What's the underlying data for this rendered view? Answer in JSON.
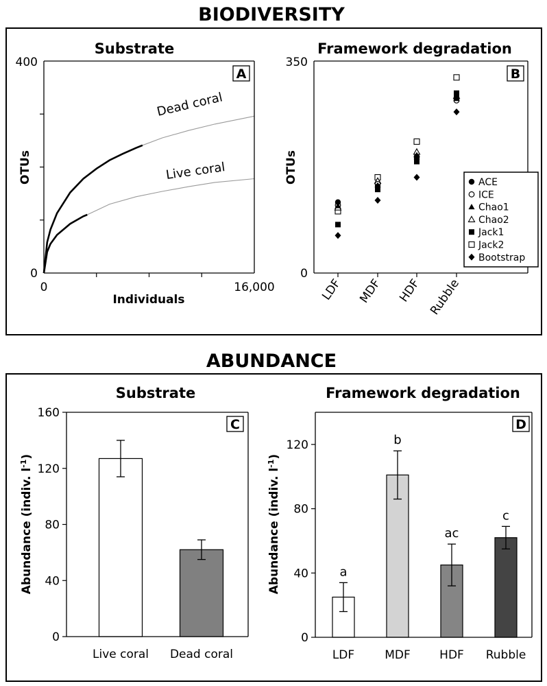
{
  "sections": {
    "biodiversity": "BIODIVERSITY",
    "abundance": "ABUNDANCE"
  },
  "chart_data": [
    {
      "id": "A",
      "type": "line",
      "panel_letter": "A",
      "title": "Substrate",
      "xlabel": "Individuals",
      "ylabel": "OTUs",
      "xlim": [
        0,
        16000
      ],
      "ylim": [
        0,
        400
      ],
      "x_tick_labels": [
        "0",
        "16,000"
      ],
      "y_tick_labels": [
        "0",
        "400"
      ],
      "series": [
        {
          "name": "Dead coral",
          "label": "Dead coral",
          "observed_to": 7500,
          "points": [
            [
              0,
              0
            ],
            [
              250,
              58
            ],
            [
              500,
              82
            ],
            [
              1000,
              113
            ],
            [
              2000,
              152
            ],
            [
              3000,
              178
            ],
            [
              4000,
              197
            ],
            [
              5000,
              213
            ],
            [
              6000,
              225
            ],
            [
              7000,
              236
            ],
            [
              7500,
              241
            ],
            [
              9000,
              255
            ],
            [
              11000,
              269
            ],
            [
              13000,
              281
            ],
            [
              16000,
              296
            ]
          ]
        },
        {
          "name": "Live coral",
          "label": "Live coral",
          "observed_to": 3300,
          "points": [
            [
              0,
              0
            ],
            [
              250,
              40
            ],
            [
              500,
              55
            ],
            [
              1000,
              72
            ],
            [
              2000,
              93
            ],
            [
              3000,
              107
            ],
            [
              3300,
              110
            ],
            [
              5000,
              130
            ],
            [
              7000,
              144
            ],
            [
              9000,
              154
            ],
            [
              11000,
              163
            ],
            [
              13000,
              171
            ],
            [
              16000,
              178
            ]
          ]
        }
      ]
    },
    {
      "id": "B",
      "type": "scatter",
      "panel_letter": "B",
      "title": "Framework degradation",
      "xlabel": "",
      "ylabel": "OTUs",
      "ylim": [
        0,
        350
      ],
      "y_tick_labels": [
        "0",
        "350"
      ],
      "categories": [
        "LDF",
        "MDF",
        "HDF",
        "Rubble"
      ],
      "series": [
        {
          "name": "ACE",
          "values": [
            117,
            143,
            188,
            290
          ]
        },
        {
          "name": "ICE",
          "values": [
            112,
            147,
            192,
            285
          ]
        },
        {
          "name": "Chao1",
          "values": [
            111,
            145,
            195,
            288
          ]
        },
        {
          "name": "Chao2",
          "values": [
            108,
            152,
            200,
            292
          ]
        },
        {
          "name": "Jack1",
          "values": [
            80,
            138,
            184,
            297
          ]
        },
        {
          "name": "Jack2",
          "values": [
            102,
            158,
            217,
            323
          ]
        },
        {
          "name": "Bootstrap",
          "values": [
            62,
            120,
            158,
            266
          ]
        }
      ]
    },
    {
      "id": "C",
      "type": "bar",
      "panel_letter": "C",
      "title": "Substrate",
      "xlabel": "",
      "ylabel": "Abundance (indiv. l-1)",
      "ylim": [
        0,
        160
      ],
      "y_tick_labels": [
        "0",
        "40",
        "80",
        "120",
        "160"
      ],
      "categories": [
        "Live coral",
        "Dead coral"
      ],
      "values": [
        127,
        62
      ],
      "errors": [
        13,
        7
      ],
      "colors": [
        "#ffffff",
        "#808080"
      ]
    },
    {
      "id": "D",
      "type": "bar",
      "panel_letter": "D",
      "title": "Framework degradation",
      "xlabel": "",
      "ylabel": "Abundance (indiv. l-1)",
      "ylim": [
        0,
        140
      ],
      "y_tick_labels": [
        "0",
        "40",
        "80",
        "120"
      ],
      "categories": [
        "LDF",
        "MDF",
        "HDF",
        "Rubble"
      ],
      "values": [
        25,
        101,
        45,
        62
      ],
      "errors": [
        9,
        15,
        13,
        7
      ],
      "significance": [
        "a",
        "b",
        "ac",
        "c"
      ],
      "colors": [
        "#ffffff",
        "#d3d3d3",
        "#858585",
        "#444444"
      ]
    }
  ]
}
